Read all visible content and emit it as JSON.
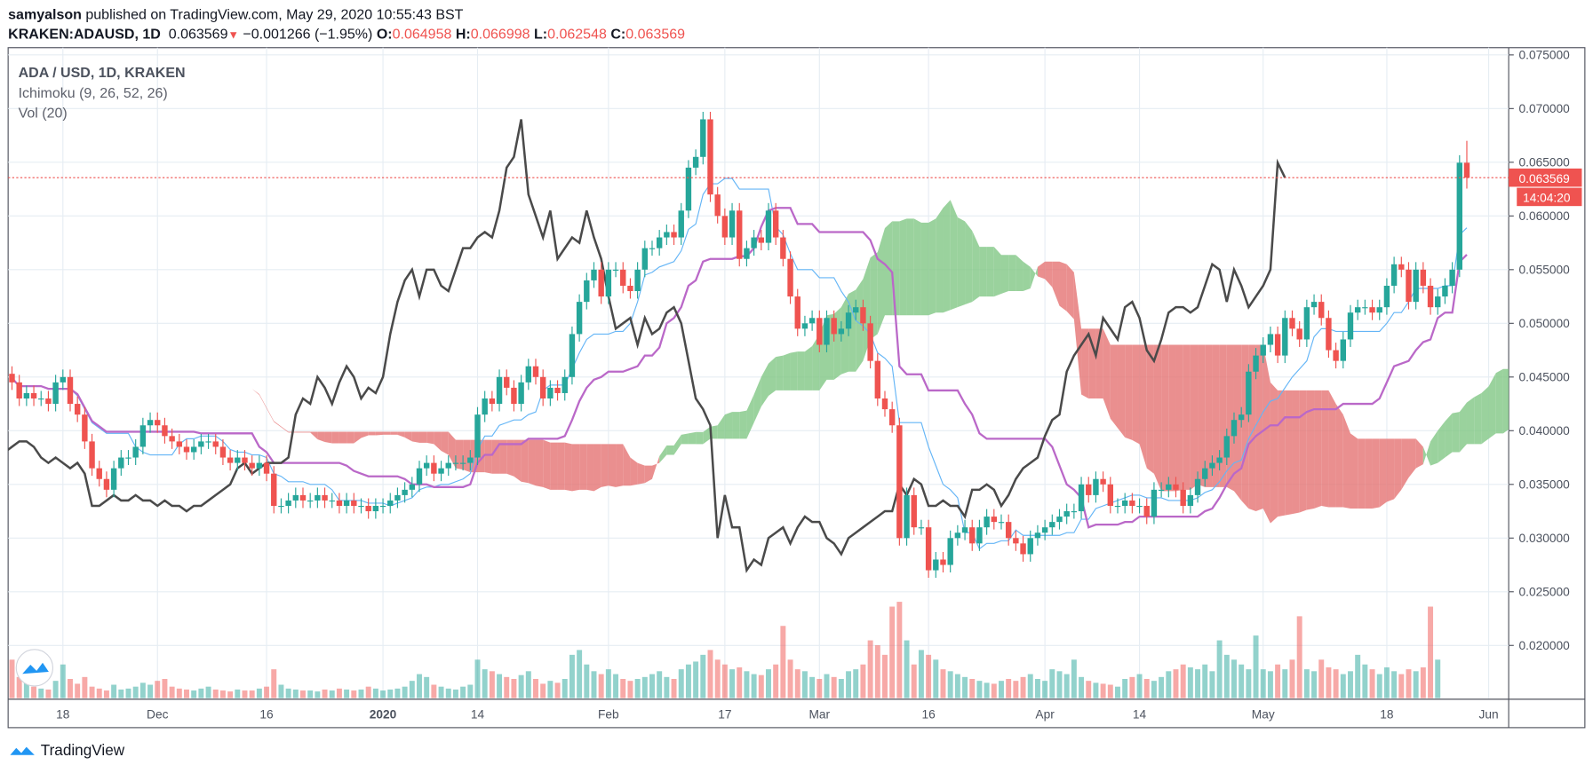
{
  "header": {
    "author": "samyalson",
    "published": "published on TradingView.com, May 29, 2020 10:55:43 BST",
    "symbol": "KRAKEN:ADAUSD, 1D",
    "last": "0.063569",
    "change": "−0.001266 (−1.95%)",
    "o_label": "O:",
    "o": "0.064958",
    "h_label": "H:",
    "h": "0.066998",
    "l_label": "L:",
    "l": "0.062548",
    "c_label": "C:",
    "c": "0.063569"
  },
  "legend": {
    "title": "ADA / USD, 1D, KRAKEN",
    "ichimoku": "Ichimoku (9, 26, 52, 26)",
    "volume": "Vol (20)"
  },
  "price_tag": {
    "value": "0.063569",
    "countdown": "14:04:20"
  },
  "footer": {
    "brand": "TradingView"
  },
  "colors": {
    "up": "#26a69a",
    "down": "#ef5350",
    "tenkan": "#64b5f6",
    "kijun": "#ba68c8",
    "chikou": "#4a4a4a",
    "cloud_up": "#81c784",
    "cloud_down": "#e57373"
  },
  "chart_data": {
    "type": "candlestick",
    "symbol": "ADA / USD",
    "interval": "1D",
    "start_date": "2019-11-11",
    "ylim": [
      0.015,
      0.076
    ],
    "grid": true,
    "y_ticks": [
      "0.075000",
      "0.070000",
      "0.065000",
      "0.060000",
      "0.055000",
      "0.050000",
      "0.045000",
      "0.040000",
      "0.035000",
      "0.030000",
      "0.025000",
      "0.020000"
    ],
    "x_ticks": [
      {
        "label": "18",
        "date": "2019-11-18"
      },
      {
        "label": "Dec",
        "date": "2019-12-01"
      },
      {
        "label": "16",
        "date": "2019-12-16"
      },
      {
        "label": "2020",
        "date": "2020-01-01"
      },
      {
        "label": "14",
        "date": "2020-01-14"
      },
      {
        "label": "Feb",
        "date": "2020-02-01"
      },
      {
        "label": "17",
        "date": "2020-02-17"
      },
      {
        "label": "Mar",
        "date": "2020-03-01"
      },
      {
        "label": "16",
        "date": "2020-03-16"
      },
      {
        "label": "Apr",
        "date": "2020-04-01"
      },
      {
        "label": "14",
        "date": "2020-04-14"
      },
      {
        "label": "May",
        "date": "2020-05-01"
      },
      {
        "label": "18",
        "date": "2020-05-18"
      },
      {
        "label": "Jun",
        "date": "2020-06-01"
      }
    ],
    "ichimoku": {
      "conversion": 9,
      "base": 26,
      "span_b": 52,
      "displacement": 26
    },
    "close": [
      0.0445,
      0.043,
      0.0435,
      0.043,
      0.043,
      0.0425,
      0.0445,
      0.045,
      0.0425,
      0.0415,
      0.039,
      0.0365,
      0.0355,
      0.0345,
      0.0365,
      0.0375,
      0.0375,
      0.0385,
      0.0405,
      0.041,
      0.0405,
      0.0395,
      0.039,
      0.0385,
      0.038,
      0.0385,
      0.039,
      0.039,
      0.0385,
      0.0375,
      0.037,
      0.0375,
      0.037,
      0.0365,
      0.037,
      0.036,
      0.033,
      0.033,
      0.0335,
      0.034,
      0.0335,
      0.0335,
      0.034,
      0.0335,
      0.0335,
      0.033,
      0.0335,
      0.033,
      0.033,
      0.0325,
      0.033,
      0.033,
      0.0335,
      0.034,
      0.0345,
      0.035,
      0.0365,
      0.037,
      0.036,
      0.0365,
      0.037,
      0.037,
      0.037,
      0.0375,
      0.0415,
      0.043,
      0.0425,
      0.045,
      0.044,
      0.0425,
      0.0445,
      0.046,
      0.045,
      0.043,
      0.044,
      0.0435,
      0.045,
      0.049,
      0.052,
      0.054,
      0.055,
      0.0525,
      0.055,
      0.055,
      0.0535,
      0.053,
      0.055,
      0.057,
      0.057,
      0.058,
      0.0585,
      0.058,
      0.0605,
      0.0645,
      0.0655,
      0.069,
      0.062,
      0.06,
      0.058,
      0.0605,
      0.056,
      0.057,
      0.058,
      0.0575,
      0.0605,
      0.058,
      0.056,
      0.0525,
      0.0495,
      0.05,
      0.0505,
      0.048,
      0.0505,
      0.049,
      0.0495,
      0.051,
      0.0515,
      0.05,
      0.0465,
      0.043,
      0.042,
      0.0405,
      0.03,
      0.034,
      0.031,
      0.031,
      0.027,
      0.028,
      0.0275,
      0.03,
      0.0305,
      0.031,
      0.0295,
      0.031,
      0.032,
      0.0315,
      0.0315,
      0.03,
      0.0295,
      0.0285,
      0.03,
      0.0305,
      0.031,
      0.0315,
      0.032,
      0.0325,
      0.0325,
      0.035,
      0.034,
      0.0355,
      0.035,
      0.033,
      0.033,
      0.0335,
      0.033,
      0.033,
      0.032,
      0.0345,
      0.0345,
      0.035,
      0.0345,
      0.033,
      0.034,
      0.0355,
      0.0365,
      0.037,
      0.0375,
      0.0395,
      0.041,
      0.0415,
      0.0455,
      0.047,
      0.048,
      0.049,
      0.047,
      0.0505,
      0.0495,
      0.0485,
      0.0515,
      0.052,
      0.0505,
      0.0475,
      0.0465,
      0.0485,
      0.051,
      0.0515,
      0.0515,
      0.051,
      0.0515,
      0.0535,
      0.0555,
      0.055,
      0.052,
      0.055,
      0.0535,
      0.0515,
      0.0525,
      0.0535,
      0.055,
      0.064958,
      0.063569
    ],
    "volume_relative": [
      40,
      22,
      18,
      12,
      10,
      9,
      18,
      35,
      20,
      15,
      22,
      12,
      10,
      8,
      14,
      9,
      10,
      12,
      16,
      14,
      18,
      20,
      12,
      10,
      9,
      8,
      10,
      12,
      9,
      8,
      7,
      9,
      8,
      8,
      10,
      12,
      30,
      14,
      10,
      9,
      8,
      8,
      7,
      9,
      8,
      10,
      9,
      8,
      9,
      12,
      10,
      8,
      9,
      10,
      12,
      18,
      25,
      22,
      14,
      12,
      10,
      9,
      12,
      14,
      40,
      30,
      28,
      25,
      22,
      20,
      24,
      28,
      20,
      15,
      18,
      16,
      20,
      45,
      50,
      35,
      28,
      25,
      30,
      25,
      20,
      18,
      20,
      22,
      25,
      28,
      22,
      20,
      30,
      35,
      38,
      45,
      50,
      40,
      35,
      30,
      32,
      28,
      25,
      24,
      30,
      35,
      75,
      40,
      30,
      28,
      22,
      20,
      25,
      22,
      20,
      28,
      30,
      35,
      60,
      55,
      45,
      95,
      100,
      60,
      35,
      50,
      45,
      40,
      30,
      28,
      25,
      22,
      20,
      18,
      16,
      15,
      18,
      20,
      18,
      22,
      25,
      20,
      18,
      30,
      28,
      25,
      40,
      22,
      18,
      16,
      15,
      14,
      12,
      20,
      22,
      25,
      20,
      18,
      22,
      28,
      30,
      35,
      32,
      30,
      35,
      28,
      60,
      45,
      40,
      35,
      30,
      65,
      30,
      28,
      35,
      30,
      40,
      85,
      30,
      28,
      40,
      32,
      30,
      25,
      28,
      45,
      35,
      30,
      25,
      32,
      28,
      25,
      30,
      28,
      32,
      95,
      40
    ]
  }
}
